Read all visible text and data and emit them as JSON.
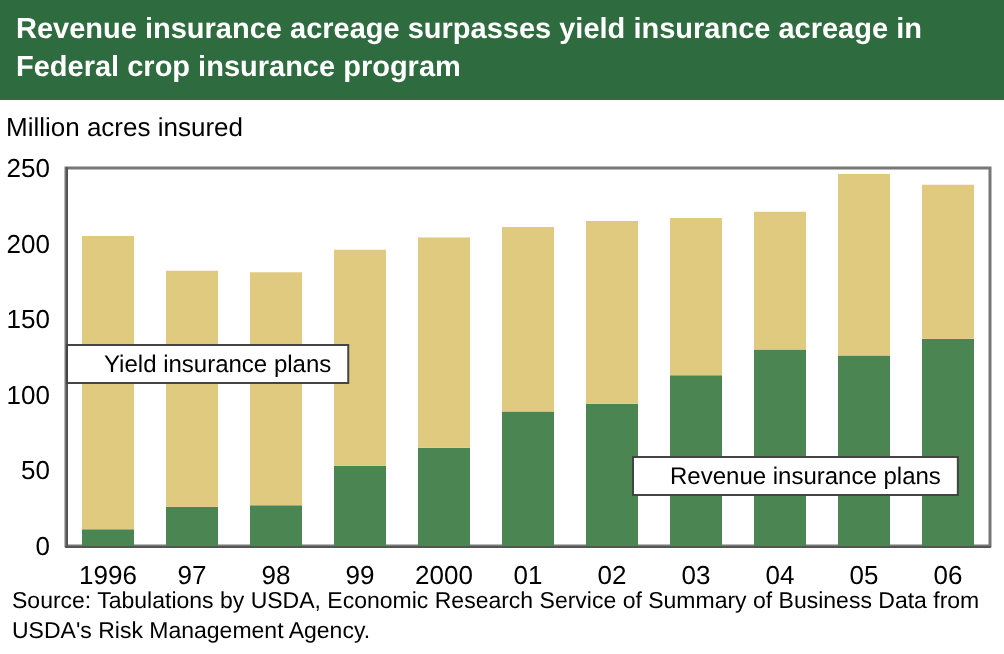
{
  "chart_data": {
    "type": "bar",
    "stacked": true,
    "title": "Revenue insurance acreage surpasses yield insurance acreage in Federal crop insurance program",
    "ylabel": "Million acres insured",
    "categories": [
      "1996",
      "97",
      "98",
      "99",
      "2000",
      "01",
      "02",
      "03",
      "04",
      "05",
      "06"
    ],
    "series": [
      {
        "name": "Revenue insurance plans",
        "color": "#4a8552",
        "values": [
          11,
          26,
          27,
          53,
          65,
          89,
          94,
          113,
          130,
          126,
          137
        ]
      },
      {
        "name": "Yield insurance plans",
        "color": "#e0ca80",
        "values": [
          194,
          156,
          154,
          143,
          139,
          122,
          121,
          104,
          91,
          120,
          102
        ]
      }
    ],
    "ylim": [
      0,
      250
    ],
    "yticks": [
      0,
      50,
      100,
      150,
      200,
      250
    ],
    "legend": false,
    "annotations": [
      "Source:  Tabulations by USDA, Economic Research Service of Summary of Business Data from USDA's Risk Management Agency."
    ]
  }
}
